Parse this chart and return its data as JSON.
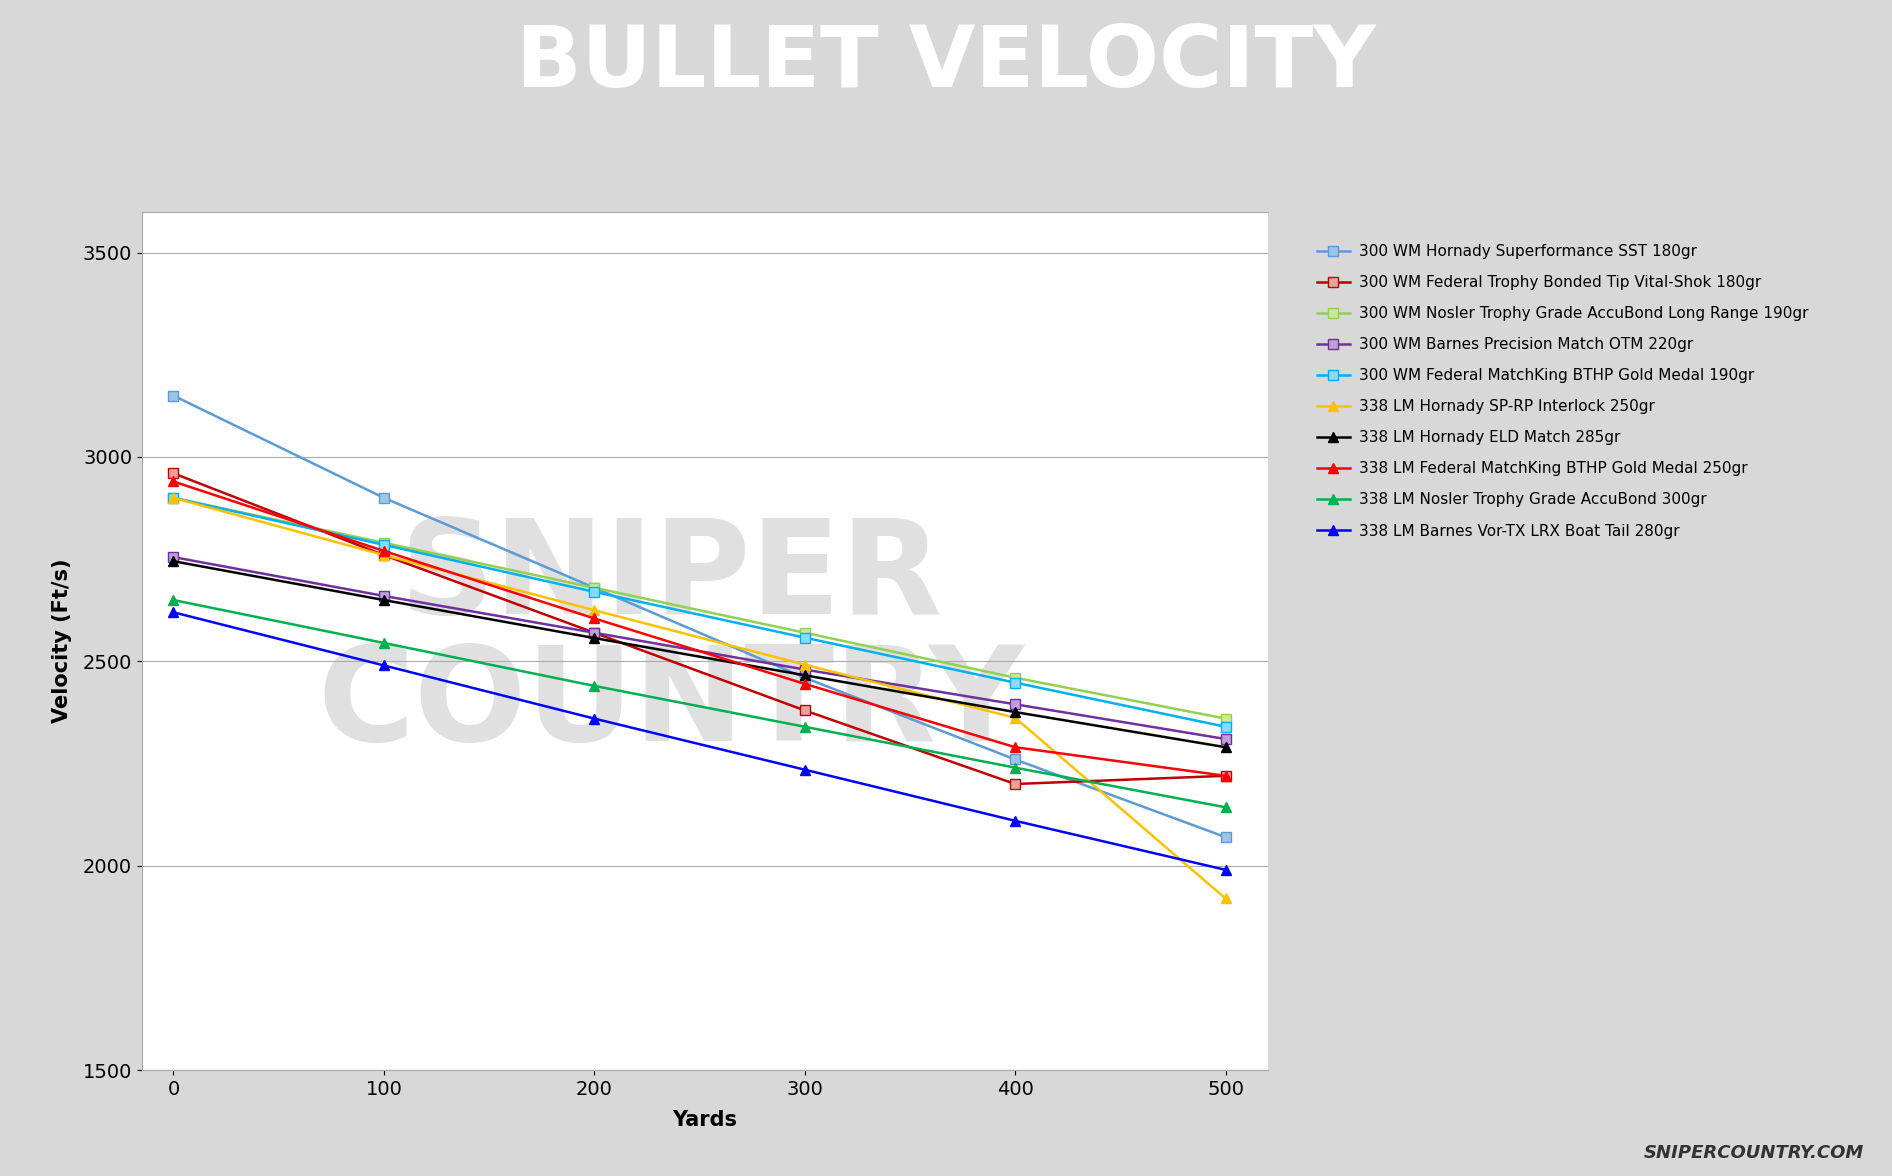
{
  "title": "BULLET VELOCITY",
  "xlabel": "Yards",
  "ylabel": "Velocity (Ft/s)",
  "title_bg_color": "#6b6b6b",
  "subtitle_bg_color": "#e8605a",
  "outer_bg_color": "#d8d8d8",
  "plot_bg_color": "#ffffff",
  "xlim": [
    -15,
    520
  ],
  "ylim": [
    1500,
    3600
  ],
  "yticks": [
    1500,
    2000,
    2500,
    3000,
    3500
  ],
  "xticks": [
    0,
    100,
    200,
    300,
    400,
    500
  ],
  "x": [
    0,
    100,
    200,
    300,
    400,
    500
  ],
  "series": [
    {
      "label": "300 WM Hornady Superformance SST 180gr",
      "color": "#5b9bd5",
      "marker": "s",
      "marker_face": "#9dc3e6",
      "linestyle": "-",
      "values": [
        3150,
        2900,
        2680,
        2460,
        2260,
        2070
      ]
    },
    {
      "label": "300 WM Federal Trophy Bonded Tip Vital-Shok 180gr",
      "color": "#c00000",
      "marker": "s",
      "marker_face": "#e8a0a0",
      "linestyle": "-",
      "values": [
        2960,
        2760,
        2570,
        2380,
        2200,
        2220
      ]
    },
    {
      "label": "300 WM Nosler Trophy Grade AccuBond Long Range 190gr",
      "color": "#92d050",
      "marker": "s",
      "marker_face": "#c9e89a",
      "linestyle": "-",
      "values": [
        2900,
        2790,
        2680,
        2570,
        2460,
        2360
      ]
    },
    {
      "label": "300 WM Barnes Precision Match OTM 220gr",
      "color": "#7030a0",
      "marker": "s",
      "marker_face": "#bf9fd9",
      "linestyle": "-",
      "values": [
        2755,
        2660,
        2570,
        2480,
        2395,
        2310
      ]
    },
    {
      "label": "300 WM Federal MatchKing BTHP Gold Medal 190gr",
      "color": "#00b0f0",
      "marker": "s",
      "marker_face": "#8fd9f8",
      "linestyle": "-",
      "values": [
        2900,
        2785,
        2670,
        2558,
        2448,
        2340
      ]
    },
    {
      "label": "338 LM Hornady SP-RP Interlock 250gr",
      "color": "#ffc000",
      "marker": "^",
      "marker_face": "#ffc000",
      "linestyle": "-",
      "values": [
        2900,
        2760,
        2625,
        2492,
        2362,
        1920
      ]
    },
    {
      "label": "338 LM Hornady ELD Match 285gr",
      "color": "#000000",
      "marker": "^",
      "marker_face": "#000000",
      "linestyle": "-",
      "values": [
        2745,
        2650,
        2557,
        2466,
        2376,
        2290
      ]
    },
    {
      "label": "338 LM Federal MatchKing BTHP Gold Medal 250gr",
      "color": "#ff0000",
      "marker": "^",
      "marker_face": "#ff0000",
      "linestyle": "-",
      "values": [
        2940,
        2770,
        2605,
        2445,
        2290,
        2220
      ]
    },
    {
      "label": "338 LM Nosler Trophy Grade AccuBond 300gr",
      "color": "#00b050",
      "marker": "^",
      "marker_face": "#00b050",
      "linestyle": "-",
      "values": [
        2650,
        2545,
        2440,
        2340,
        2240,
        2143
      ]
    },
    {
      "label": "338 LM Barnes Vor-TX LRX Boat Tail 280gr",
      "color": "#0000ff",
      "marker": "^",
      "marker_face": "#0000ff",
      "linestyle": "-",
      "values": [
        2620,
        2490,
        2360,
        2235,
        2110,
        1990
      ]
    }
  ],
  "watermark": "SNIPERCOUNTRY.COM",
  "title_fontsize": 62,
  "tick_fontsize": 14,
  "label_fontsize": 15
}
